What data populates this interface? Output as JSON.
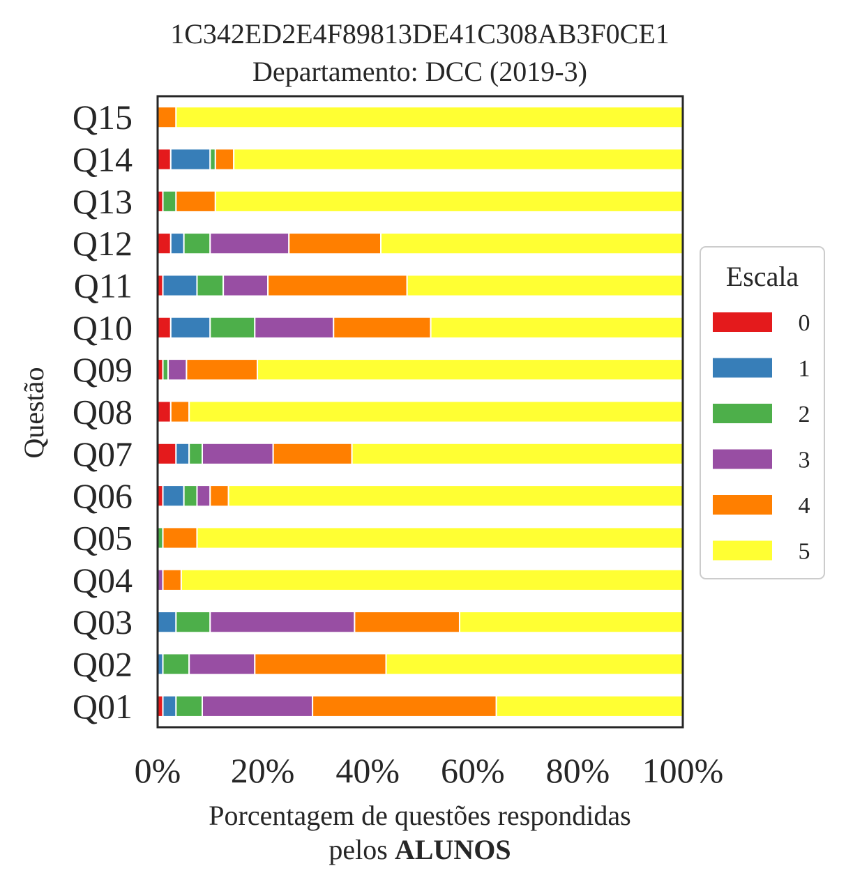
{
  "chart_data": {
    "type": "bar",
    "orientation": "horizontal",
    "stacked": true,
    "title": "1C342ED2E4F89813DE41C308AB3F0CE1",
    "subtitle": "Departamento: DCC (2019-3)",
    "xlabel_line1": "Porcentagem de questões respondidas",
    "xlabel_line2_prefix": "pelos ",
    "xlabel_line2_bold": "ALUNOS",
    "ylabel": "Questão",
    "xlim": [
      0,
      100
    ],
    "xticks": [
      "0%",
      "20%",
      "40%",
      "60%",
      "80%",
      "100%"
    ],
    "grid": false,
    "legend_title": "Escala",
    "legend_position": "center-right, outside plot",
    "categories": [
      "Q01",
      "Q02",
      "Q03",
      "Q04",
      "Q05",
      "Q06",
      "Q07",
      "Q08",
      "Q09",
      "Q10",
      "Q11",
      "Q12",
      "Q13",
      "Q14",
      "Q15"
    ],
    "series": [
      {
        "name": "0",
        "color": "#e41a1c",
        "values": [
          1.0,
          0,
          0,
          0,
          0,
          1.0,
          3.5,
          2.5,
          1.0,
          2.5,
          1.0,
          2.5,
          1.0,
          2.5,
          0
        ]
      },
      {
        "name": "1",
        "color": "#377eb8",
        "values": [
          2.5,
          1.0,
          3.5,
          0,
          0,
          4.0,
          2.5,
          0,
          0,
          7.5,
          6.5,
          2.5,
          0,
          7.5,
          0
        ]
      },
      {
        "name": "2",
        "color": "#4daf4a",
        "values": [
          5.0,
          5.0,
          6.5,
          0,
          1.0,
          2.5,
          2.5,
          0,
          1.0,
          8.5,
          5.0,
          5.0,
          2.5,
          1.0,
          0
        ]
      },
      {
        "name": "3",
        "color": "#984ea3",
        "values": [
          21.0,
          12.5,
          27.5,
          1.0,
          0,
          2.5,
          13.5,
          0,
          3.5,
          15.0,
          8.5,
          15.0,
          0,
          0,
          0
        ]
      },
      {
        "name": "4",
        "color": "#ff7f00",
        "values": [
          35.0,
          25.0,
          20.0,
          3.5,
          6.5,
          3.5,
          15.0,
          3.5,
          13.5,
          18.5,
          26.5,
          17.5,
          7.5,
          3.5,
          3.5
        ]
      },
      {
        "name": "5",
        "color": "#ffff33",
        "values": [
          35.5,
          56.5,
          42.5,
          95.5,
          92.5,
          86.5,
          63.0,
          94.0,
          81.0,
          48.0,
          52.5,
          57.5,
          89.0,
          85.5,
          96.5
        ]
      }
    ]
  }
}
